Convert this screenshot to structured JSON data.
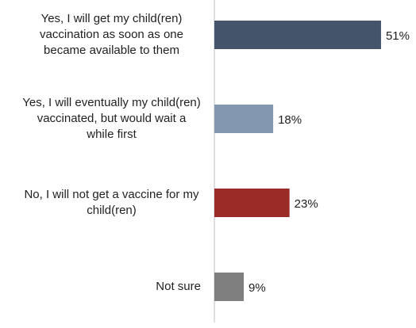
{
  "chart_data": {
    "type": "bar",
    "orientation": "horizontal",
    "categories": [
      "Yes, I will get my child(ren) vaccination as soon as one became available to them",
      "Yes, I will eventually my child(ren) vaccinated, but would wait a while first",
      "No, I will not get a vaccine for my child(ren)",
      "Not sure"
    ],
    "values": [
      51,
      18,
      23,
      9
    ],
    "value_labels": [
      "51%",
      "18%",
      "23%",
      "9%"
    ],
    "colors": [
      "#44546a",
      "#8497b0",
      "#9b2b27",
      "#7f7f7f"
    ],
    "xlim": [
      0,
      60
    ]
  }
}
